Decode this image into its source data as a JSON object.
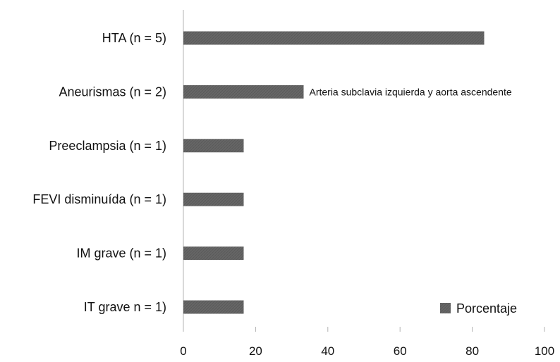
{
  "chart_data": {
    "type": "bar",
    "orientation": "horizontal",
    "categories": [
      "HTA (n = 5)",
      "Aneurismas (n = 2)",
      "Preeclampsia (n = 1)",
      "FEVI disminuída (n = 1)",
      "IM grave (n = 1)",
      "IT grave n = 1)"
    ],
    "series": [
      {
        "name": "Porcentaje",
        "values": [
          83.3,
          33.3,
          16.7,
          16.7,
          16.7,
          16.7
        ],
        "color": "#666666"
      }
    ],
    "xlim": [
      0,
      100
    ],
    "xticks": [
      "0",
      "20",
      "40",
      "60",
      "80",
      "100"
    ],
    "annotations": [
      {
        "category": "Aneurismas (n = 2)",
        "text": "Arteria subclavia izquierda y aorta ascendente"
      }
    ],
    "legend": {
      "position": "bottom-right"
    },
    "grid": false
  }
}
